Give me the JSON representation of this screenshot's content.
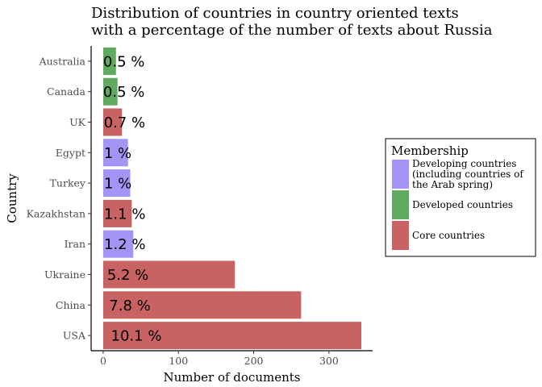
{
  "chart_data": {
    "type": "bar",
    "orientation": "horizontal",
    "title": [
      "Distribution of countries in country oriented texts",
      "with a percentage of the number of texts about Russia"
    ],
    "xlabel": "Number of documents",
    "ylabel": "Country",
    "xlim": [
      -16,
      358
    ],
    "xticks": [
      0,
      100,
      200,
      300
    ],
    "grid": false,
    "legend_position": "right",
    "legend": {
      "title": "Membership",
      "entries": [
        {
          "key": "developing",
          "label": [
            "Developing countries",
            "(including countries of",
            "the Arab spring)"
          ],
          "color": "#a395f5"
        },
        {
          "key": "developed",
          "label": [
            "Developed countries"
          ],
          "color": "#5faa5f"
        },
        {
          "key": "core",
          "label": [
            "Core countries"
          ],
          "color": "#c96262"
        }
      ]
    },
    "bars": [
      {
        "category": "Australia",
        "value": 17,
        "label": "0.5 %",
        "group": "developed"
      },
      {
        "category": "Canada",
        "value": 19,
        "label": "0.5 %",
        "group": "developed"
      },
      {
        "category": "UK",
        "value": 25,
        "label": "0.7 %",
        "group": "core"
      },
      {
        "category": "Egypt",
        "value": 33,
        "label": "1 %",
        "group": "developing"
      },
      {
        "category": "Turkey",
        "value": 36,
        "label": "1 %",
        "group": "developing"
      },
      {
        "category": "Kazakhstan",
        "value": 38,
        "label": "1.1 %",
        "group": "core"
      },
      {
        "category": "Iran",
        "value": 40,
        "label": "1.2 %",
        "group": "developing"
      },
      {
        "category": "Ukraine",
        "value": 175,
        "label": "5.2 %",
        "group": "core"
      },
      {
        "category": "China",
        "value": 263,
        "label": "7.8 %",
        "group": "core"
      },
      {
        "category": "USA",
        "value": 343,
        "label": "10.1 %",
        "group": "core"
      }
    ]
  }
}
